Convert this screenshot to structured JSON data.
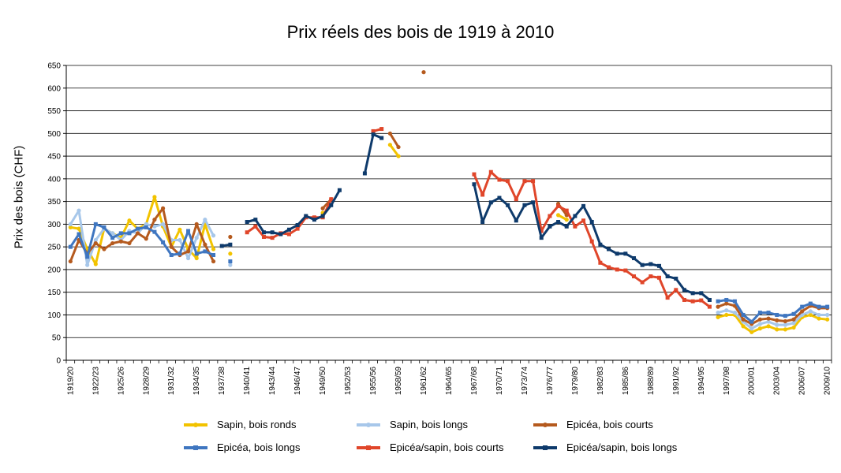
{
  "chart_data": {
    "type": "line",
    "title": "Prix réels des bois de 1919 à 2010",
    "xlabel": "",
    "ylabel": "Prix des bois (CHF)",
    "ylim": [
      0,
      650
    ],
    "yticks": [
      0,
      50,
      100,
      150,
      200,
      250,
      300,
      350,
      400,
      450,
      500,
      550,
      600,
      650
    ],
    "grid": "horizontal",
    "legend_position": "bottom",
    "categories": [
      "1919/20",
      "1920/21",
      "1921/22",
      "1922/23",
      "1923/24",
      "1924/25",
      "1925/26",
      "1926/27",
      "1927/28",
      "1928/29",
      "1929/30",
      "1930/31",
      "1931/32",
      "1932/33",
      "1933/34",
      "1934/35",
      "1935/36",
      "1936/37",
      "1937/38",
      "1938/39",
      "1939/40",
      "1940/41",
      "1941/42",
      "1942/43",
      "1943/44",
      "1944/45",
      "1945/46",
      "1946/47",
      "1947/48",
      "1948/49",
      "1949/50",
      "1950/51",
      "1951/52",
      "1952/53",
      "1953/54",
      "1954/55",
      "1955/56",
      "1956/57",
      "1957/58",
      "1958/59",
      "1959/60",
      "1960/61",
      "1961/62",
      "1962/63",
      "1963/64",
      "1964/65",
      "1965/66",
      "1966/67",
      "1967/68",
      "1968/69",
      "1969/70",
      "1970/71",
      "1971/72",
      "1972/73",
      "1973/74",
      "1974/75",
      "1975/76",
      "1976/77",
      "1977/78",
      "1978/79",
      "1979/80",
      "1980/81",
      "1981/82",
      "1982/83",
      "1983/84",
      "1984/85",
      "1985/86",
      "1986/87",
      "1987/88",
      "1988/89",
      "1989/90",
      "1990/91",
      "1991/92",
      "1992/93",
      "1993/94",
      "1994/95",
      "1995/96",
      "1996/97",
      "1997/98",
      "1998/99",
      "1999/00",
      "2000/01",
      "2001/02",
      "2002/03",
      "2003/04",
      "2004/05",
      "2005/06",
      "2006/07",
      "2007/08",
      "2008/09",
      "2009/10"
    ],
    "tick_labels": [
      "1919/20",
      "1922/23",
      "1925/26",
      "1928/29",
      "1931/32",
      "1934/35",
      "1937/38",
      "1940/41",
      "1943/44",
      "1946/47",
      "1949/50",
      "1952/53",
      "1955/56",
      "1958/59",
      "1961/62",
      "1964/65",
      "1967/68",
      "1970/71",
      "1973/74",
      "1976/77",
      "1979/80",
      "1982/83",
      "1985/86",
      "1988/89",
      "1991/92",
      "1994/95",
      "1997/98",
      "2000/01",
      "2003/04",
      "2006/07",
      "2009/10"
    ],
    "series": [
      {
        "name": "Sapin, bois ronds",
        "color": "#f2c300",
        "marker": "dot",
        "values": [
          293,
          290,
          245,
          212,
          290,
          280,
          270,
          308,
          290,
          300,
          360,
          295,
          250,
          288,
          245,
          225,
          300,
          245,
          null,
          235,
          null,
          null,
          null,
          null,
          null,
          null,
          null,
          null,
          null,
          null,
          325,
          null,
          null,
          null,
          null,
          null,
          null,
          null,
          475,
          450,
          null,
          null,
          null,
          null,
          null,
          null,
          null,
          null,
          null,
          null,
          null,
          null,
          null,
          null,
          null,
          null,
          null,
          null,
          320,
          310,
          null,
          null,
          null,
          null,
          null,
          null,
          null,
          null,
          null,
          null,
          null,
          null,
          null,
          null,
          null,
          null,
          null,
          95,
          100,
          100,
          75,
          62,
          70,
          75,
          68,
          68,
          72,
          95,
          100,
          92,
          90
        ]
      },
      {
        "name": "Sapin, bois longs",
        "color": "#a7c7ea",
        "marker": "dot",
        "values": [
          300,
          330,
          210,
          265,
          290,
          280,
          265,
          285,
          280,
          300,
          295,
          300,
          265,
          265,
          225,
          270,
          310,
          275,
          null,
          210,
          null,
          null,
          null,
          null,
          null,
          null,
          null,
          null,
          null,
          null,
          null,
          null,
          null,
          null,
          null,
          null,
          null,
          null,
          null,
          null,
          null,
          null,
          null,
          null,
          null,
          null,
          null,
          null,
          null,
          null,
          null,
          null,
          null,
          null,
          null,
          null,
          null,
          null,
          null,
          null,
          null,
          null,
          null,
          null,
          null,
          null,
          null,
          null,
          null,
          null,
          null,
          null,
          null,
          null,
          null,
          null,
          null,
          105,
          110,
          105,
          85,
          70,
          80,
          85,
          78,
          78,
          82,
          100,
          108,
          100,
          100
        ]
      },
      {
        "name": "Epicéa, bois courts",
        "color": "#b55a1e",
        "marker": "dot",
        "values": [
          218,
          265,
          235,
          258,
          245,
          258,
          262,
          258,
          280,
          268,
          310,
          335,
          250,
          232,
          240,
          300,
          255,
          218,
          null,
          272,
          null,
          null,
          null,
          null,
          null,
          null,
          null,
          null,
          null,
          null,
          335,
          355,
          null,
          null,
          null,
          null,
          null,
          null,
          500,
          470,
          null,
          null,
          635,
          null,
          null,
          null,
          null,
          null,
          null,
          null,
          null,
          null,
          null,
          null,
          null,
          null,
          null,
          null,
          345,
          320,
          null,
          null,
          null,
          null,
          null,
          null,
          null,
          null,
          null,
          null,
          null,
          null,
          null,
          null,
          null,
          null,
          null,
          118,
          125,
          120,
          90,
          80,
          90,
          92,
          88,
          86,
          90,
          108,
          120,
          115,
          115
        ]
      },
      {
        "name": "Epicéa, bois longs",
        "color": "#3f76c0",
        "marker": "square",
        "values": [
          250,
          278,
          228,
          300,
          293,
          270,
          280,
          280,
          290,
          293,
          283,
          260,
          232,
          235,
          285,
          235,
          240,
          232,
          null,
          218,
          null,
          null,
          null,
          null,
          null,
          null,
          null,
          null,
          null,
          null,
          null,
          null,
          null,
          null,
          null,
          null,
          null,
          null,
          null,
          null,
          null,
          null,
          null,
          null,
          null,
          null,
          null,
          null,
          null,
          null,
          null,
          null,
          null,
          null,
          null,
          null,
          null,
          null,
          null,
          null,
          null,
          null,
          null,
          null,
          null,
          null,
          null,
          null,
          null,
          null,
          null,
          null,
          null,
          null,
          null,
          null,
          null,
          130,
          133,
          130,
          100,
          85,
          105,
          105,
          100,
          98,
          102,
          118,
          125,
          118,
          118
        ]
      },
      {
        "name": "Epicéa/sapin, bois courts",
        "color": "#e0462a",
        "marker": "square",
        "values": [
          null,
          null,
          null,
          null,
          null,
          null,
          null,
          null,
          null,
          null,
          null,
          null,
          null,
          null,
          null,
          null,
          null,
          null,
          null,
          null,
          null,
          282,
          295,
          272,
          270,
          280,
          278,
          290,
          315,
          315,
          315,
          355,
          null,
          null,
          null,
          null,
          505,
          510,
          null,
          null,
          null,
          null,
          null,
          null,
          null,
          null,
          null,
          null,
          410,
          365,
          415,
          398,
          395,
          355,
          395,
          395,
          285,
          318,
          340,
          330,
          295,
          308,
          262,
          215,
          205,
          200,
          198,
          185,
          172,
          185,
          182,
          138,
          155,
          133,
          130,
          132,
          118,
          null,
          null,
          null,
          null,
          null,
          null,
          null,
          null,
          null,
          null,
          null,
          null,
          null,
          null
        ]
      },
      {
        "name": "Epicéa/sapin, bois longs",
        "color": "#0e3a6b",
        "marker": "square",
        "values": [
          null,
          null,
          null,
          null,
          null,
          null,
          null,
          null,
          null,
          null,
          null,
          null,
          null,
          null,
          null,
          null,
          null,
          null,
          252,
          255,
          null,
          305,
          310,
          282,
          282,
          278,
          288,
          298,
          318,
          310,
          318,
          342,
          375,
          null,
          null,
          412,
          498,
          490,
          null,
          null,
          null,
          null,
          null,
          null,
          null,
          null,
          null,
          null,
          388,
          305,
          348,
          358,
          342,
          308,
          342,
          348,
          270,
          295,
          305,
          295,
          318,
          340,
          305,
          255,
          245,
          235,
          235,
          225,
          210,
          212,
          208,
          185,
          180,
          155,
          148,
          148,
          133,
          null,
          null,
          null,
          null,
          null,
          null,
          null,
          null,
          null,
          null,
          null,
          null,
          null,
          null
        ]
      }
    ]
  }
}
